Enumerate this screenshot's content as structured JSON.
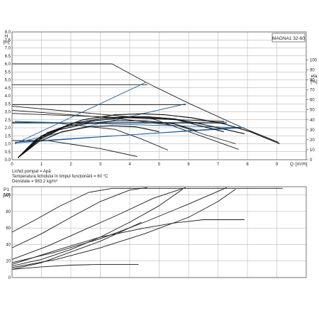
{
  "colors": {
    "axis": "#555555",
    "grid": "#aaaaaa",
    "curve": "#1b1b1b",
    "system_curve": "#1f5f9a",
    "eta_curve": "#111111",
    "text": "#1a1a1a"
  },
  "chart_data": [
    {
      "type": "line",
      "title": "MAGNA1 32-60",
      "ylabel": "H",
      "yunit": "[m]",
      "xlabel": "Q",
      "xunit": "[m³/h]",
      "xlim": [
        0,
        10
      ],
      "ylim": [
        0,
        8
      ],
      "x_ticks": [
        0,
        1,
        2,
        3,
        4,
        5,
        6,
        7,
        8,
        9
      ],
      "y_ticks": [
        "0.0",
        "0.5",
        "1.0",
        "1.5",
        "2.0",
        "2.5",
        "3.0",
        "3.5",
        "4.0",
        "4.5",
        "5.0",
        "5.5",
        "6.0",
        "6.5",
        "7.0",
        "7.5",
        "8.0"
      ],
      "y2label": "eta",
      "y2unit": "[%]",
      "y2lim": [
        0,
        100
      ],
      "y2_ticks": [
        0,
        10,
        20,
        30,
        40,
        50,
        60,
        70,
        80,
        90,
        100
      ],
      "grid": true,
      "series": [
        {
          "group": "pump_curve",
          "x": [
            0,
            3.4,
            4.65,
            6.05,
            7.9,
            9.05
          ],
          "y": [
            6.0,
            6.0,
            4.75,
            3.5,
            1.95,
            1.1
          ]
        },
        {
          "group": "pump_curve",
          "x": [
            0,
            4.6
          ],
          "y": [
            4.7,
            4.7
          ]
        },
        {
          "group": "pump_curve",
          "x": [
            0,
            5.9
          ],
          "y": [
            3.45,
            3.45
          ]
        },
        {
          "group": "pump_curve",
          "x": [
            0,
            7.3
          ],
          "y": [
            2.3,
            2.3
          ]
        },
        {
          "group": "pump_curve",
          "x": [
            0,
            7.2
          ],
          "y": [
            2.9,
            2.4
          ]
        },
        {
          "group": "pump_curve",
          "x": [
            0,
            4.8,
            7.7
          ],
          "y": [
            3.35,
            2.55,
            0.65
          ]
        },
        {
          "group": "pump_curve",
          "x": [
            0,
            3.5,
            5.7,
            6.5,
            7.6
          ],
          "y": [
            3.1,
            2.6,
            2.1,
            1.6,
            1.0
          ]
        },
        {
          "group": "pump_curve",
          "x": [
            0,
            1.5,
            3.5,
            4.4,
            5.3
          ],
          "y": [
            2.35,
            2.3,
            1.9,
            1.3,
            0.6
          ]
        },
        {
          "group": "pump_curve",
          "x": [
            0,
            1.2,
            3.0,
            4.25
          ],
          "y": [
            1.2,
            1.2,
            0.7,
            0.2
          ]
        },
        {
          "group": "system_curve",
          "x": [
            0.1,
            4.55
          ],
          "y": [
            1.0,
            4.85
          ]
        },
        {
          "group": "system_curve",
          "x": [
            0.1,
            5.9
          ],
          "y": [
            1.05,
            3.5
          ]
        },
        {
          "group": "system_curve",
          "x": [
            0.1,
            7.8
          ],
          "y": [
            1.05,
            2.05
          ]
        },
        {
          "group": "system_curve",
          "x": [
            0.1,
            7.9
          ],
          "y": [
            2.4,
            2.0
          ]
        },
        {
          "group": "system_curve",
          "x": [
            0.1,
            7.3
          ],
          "y": [
            2.3,
            2.35
          ]
        },
        {
          "group": "system_curve",
          "x": [
            0.1,
            7.8
          ],
          "y": [
            1.1,
            2.0
          ]
        },
        {
          "group": "efficiency",
          "axis": "y2",
          "x": [
            0.2,
            1.2,
            2.4,
            3.5,
            4.4,
            5.2,
            6.1,
            7.2,
            8.1,
            9.1
          ],
          "y": [
            2,
            27,
            40,
            45,
            46,
            45,
            42,
            36,
            28,
            16
          ]
        },
        {
          "group": "efficiency",
          "axis": "y2",
          "x": [
            0.2,
            1.0,
            2.0,
            3.0,
            3.8,
            4.6,
            5.5,
            6.4,
            7.3,
            7.9
          ],
          "y": [
            2,
            24,
            36,
            41,
            43,
            43,
            41,
            36,
            30,
            26
          ]
        },
        {
          "group": "efficiency",
          "axis": "y2",
          "x": [
            0.2,
            0.8,
            1.8,
            2.8,
            3.8,
            4.6,
            5.6,
            6.4,
            7.2
          ],
          "y": [
            2,
            20,
            33,
            39,
            42,
            42,
            40,
            34,
            28
          ]
        },
        {
          "group": "efficiency",
          "axis": "y2",
          "x": [
            0.2,
            0.8,
            1.6,
            2.5,
            3.5,
            4.5,
            5.5,
            6.3
          ],
          "y": [
            2,
            18,
            30,
            36,
            39,
            39,
            36,
            29
          ]
        },
        {
          "group": "efficiency",
          "axis": "y2",
          "x": [
            0.2,
            0.9,
            1.7,
            2.6,
            3.4,
            4.2,
            5.0
          ],
          "y": [
            2,
            18,
            28,
            33,
            34,
            33,
            28
          ]
        }
      ],
      "annotations": [
        {
          "group": "fluid_info",
          "text": "Lichid pompat = Apă"
        },
        {
          "group": "fluid_info",
          "text": "Temperatura lichidului în timpul funcționării = 60 °C"
        },
        {
          "group": "fluid_info",
          "text": "Densitate = 983.2 kg/m³"
        }
      ]
    },
    {
      "type": "line",
      "ylabel": "P1",
      "yunit": "[W]",
      "xlim": [
        0,
        10
      ],
      "ylim": [
        0,
        110
      ],
      "x_ticks": [
        0,
        1,
        2,
        3,
        4,
        5,
        6,
        7,
        8,
        9
      ],
      "y_ticks": [
        0,
        20,
        40,
        60,
        80,
        100
      ],
      "grid": true,
      "series": [
        {
          "x": [
            0,
            0.8,
            1.6,
            2.6,
            3.4,
            4.6,
            6.2,
            7.0,
            8.4,
            9.2
          ],
          "y": [
            55,
            70,
            86,
            103,
            108,
            108,
            108,
            108,
            108,
            108
          ]
        },
        {
          "x": [
            0,
            1.0,
            2.0,
            3.0,
            4.0,
            4.6
          ],
          "y": [
            36,
            53,
            73,
            92,
            106,
            109
          ]
        },
        {
          "x": [
            0,
            1.2,
            2.4,
            3.6,
            4.8,
            5.9
          ],
          "y": [
            22,
            38,
            57,
            76,
            96,
            109
          ]
        },
        {
          "x": [
            0,
            1.5,
            3.0,
            4.5,
            6.0,
            7.3
          ],
          "y": [
            18,
            31,
            47,
            67,
            89,
            109
          ]
        },
        {
          "x": [
            0,
            1.0,
            2.0,
            3.0,
            4.0,
            5.0,
            5.8
          ],
          "y": [
            14,
            22,
            34,
            49,
            67,
            87,
            107
          ]
        },
        {
          "x": [
            0,
            1.5,
            3.0,
            4.5,
            6.0,
            7.0,
            7.6
          ],
          "y": [
            12,
            22,
            36,
            53,
            73,
            92,
            107
          ]
        },
        {
          "x": [
            0,
            1.5,
            3.0,
            4.5,
            5.5,
            6.5,
            7.9
          ],
          "y": [
            16,
            33,
            49,
            60,
            66,
            70,
            70
          ]
        },
        {
          "x": [
            0,
            1.0,
            2.0,
            3.0,
            3.8,
            4.4
          ],
          "y": [
            10,
            18,
            31,
            44,
            57,
            67
          ]
        },
        {
          "x": [
            0,
            1.0,
            2.0,
            3.0,
            4.3
          ],
          "y": [
            10,
            13,
            15,
            16,
            16
          ]
        }
      ]
    }
  ]
}
